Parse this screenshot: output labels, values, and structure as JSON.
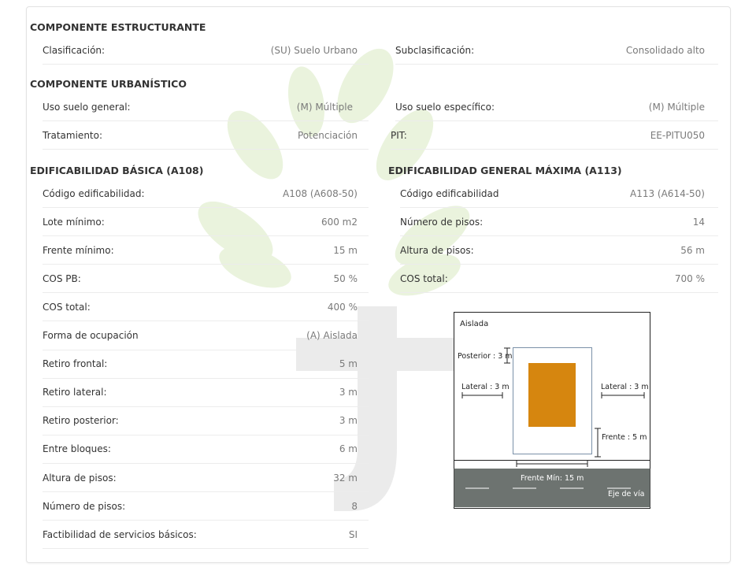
{
  "componente_estructurante": {
    "title": "COMPONENTE ESTRUCTURANTE",
    "rows": [
      {
        "label": "Clasificación:",
        "value": "(SU) Suelo Urbano"
      },
      {
        "label": "Subclasificación:",
        "value": "Consolidado alto"
      }
    ]
  },
  "componente_urbanistico": {
    "title": "COMPONENTE URBANÍSTICO",
    "rows": [
      {
        "label": "Uso suelo general:",
        "value": "(M) Múltiple"
      },
      {
        "label": "Uso suelo específico:",
        "value": "(M) Múltiple"
      },
      {
        "label": "Tratamiento:",
        "value": "Potenciación"
      },
      {
        "label": "PIT:",
        "value": "EE-PITU050"
      }
    ]
  },
  "edificabilidad_basica": {
    "title": "EDIFICABILIDAD BÁSICA (A108)",
    "rows": [
      {
        "label": "Código edificabilidad:",
        "value": "A108 (A608-50)"
      },
      {
        "label": "Lote mínimo:",
        "value": "600 m2"
      },
      {
        "label": "Frente mínimo:",
        "value": "15 m"
      },
      {
        "label": "COS PB:",
        "value": "50 %"
      },
      {
        "label": "COS total:",
        "value": "400 %"
      },
      {
        "label": "Forma de ocupación",
        "value": "(A) Aislada"
      },
      {
        "label": "Retiro frontal:",
        "value": "5 m"
      },
      {
        "label": "Retiro lateral:",
        "value": "3 m"
      },
      {
        "label": "Retiro posterior:",
        "value": "3 m"
      },
      {
        "label": "Entre bloques:",
        "value": "6 m"
      },
      {
        "label": "Altura de pisos:",
        "value": "32 m"
      },
      {
        "label": "Número de pisos:",
        "value": "8"
      },
      {
        "label": "Factibilidad de servicios básicos:",
        "value": "SI"
      }
    ]
  },
  "edificabilidad_maxima": {
    "title": "EDIFICABILIDAD GENERAL MÁXIMA (A113)",
    "rows": [
      {
        "label": "Código edificabilidad",
        "value": "A113 (A614-50)"
      },
      {
        "label": "Número de pisos:",
        "value": "14"
      },
      {
        "label": "Altura de pisos:",
        "value": "56 m"
      },
      {
        "label": "COS total:",
        "value": "700 %"
      }
    ]
  },
  "diagram": {
    "title": "Aislada",
    "posterior": "Posterior : 3 m",
    "lateral_left": "Lateral : 3 m",
    "lateral_right": "Lateral : 3 m",
    "frente": "Frente : 5 m",
    "frente_min": "Frente Mín: 15 m",
    "eje_via": "Eje de vía",
    "building_color": "#d6860f",
    "road_color": "#6d7370"
  }
}
